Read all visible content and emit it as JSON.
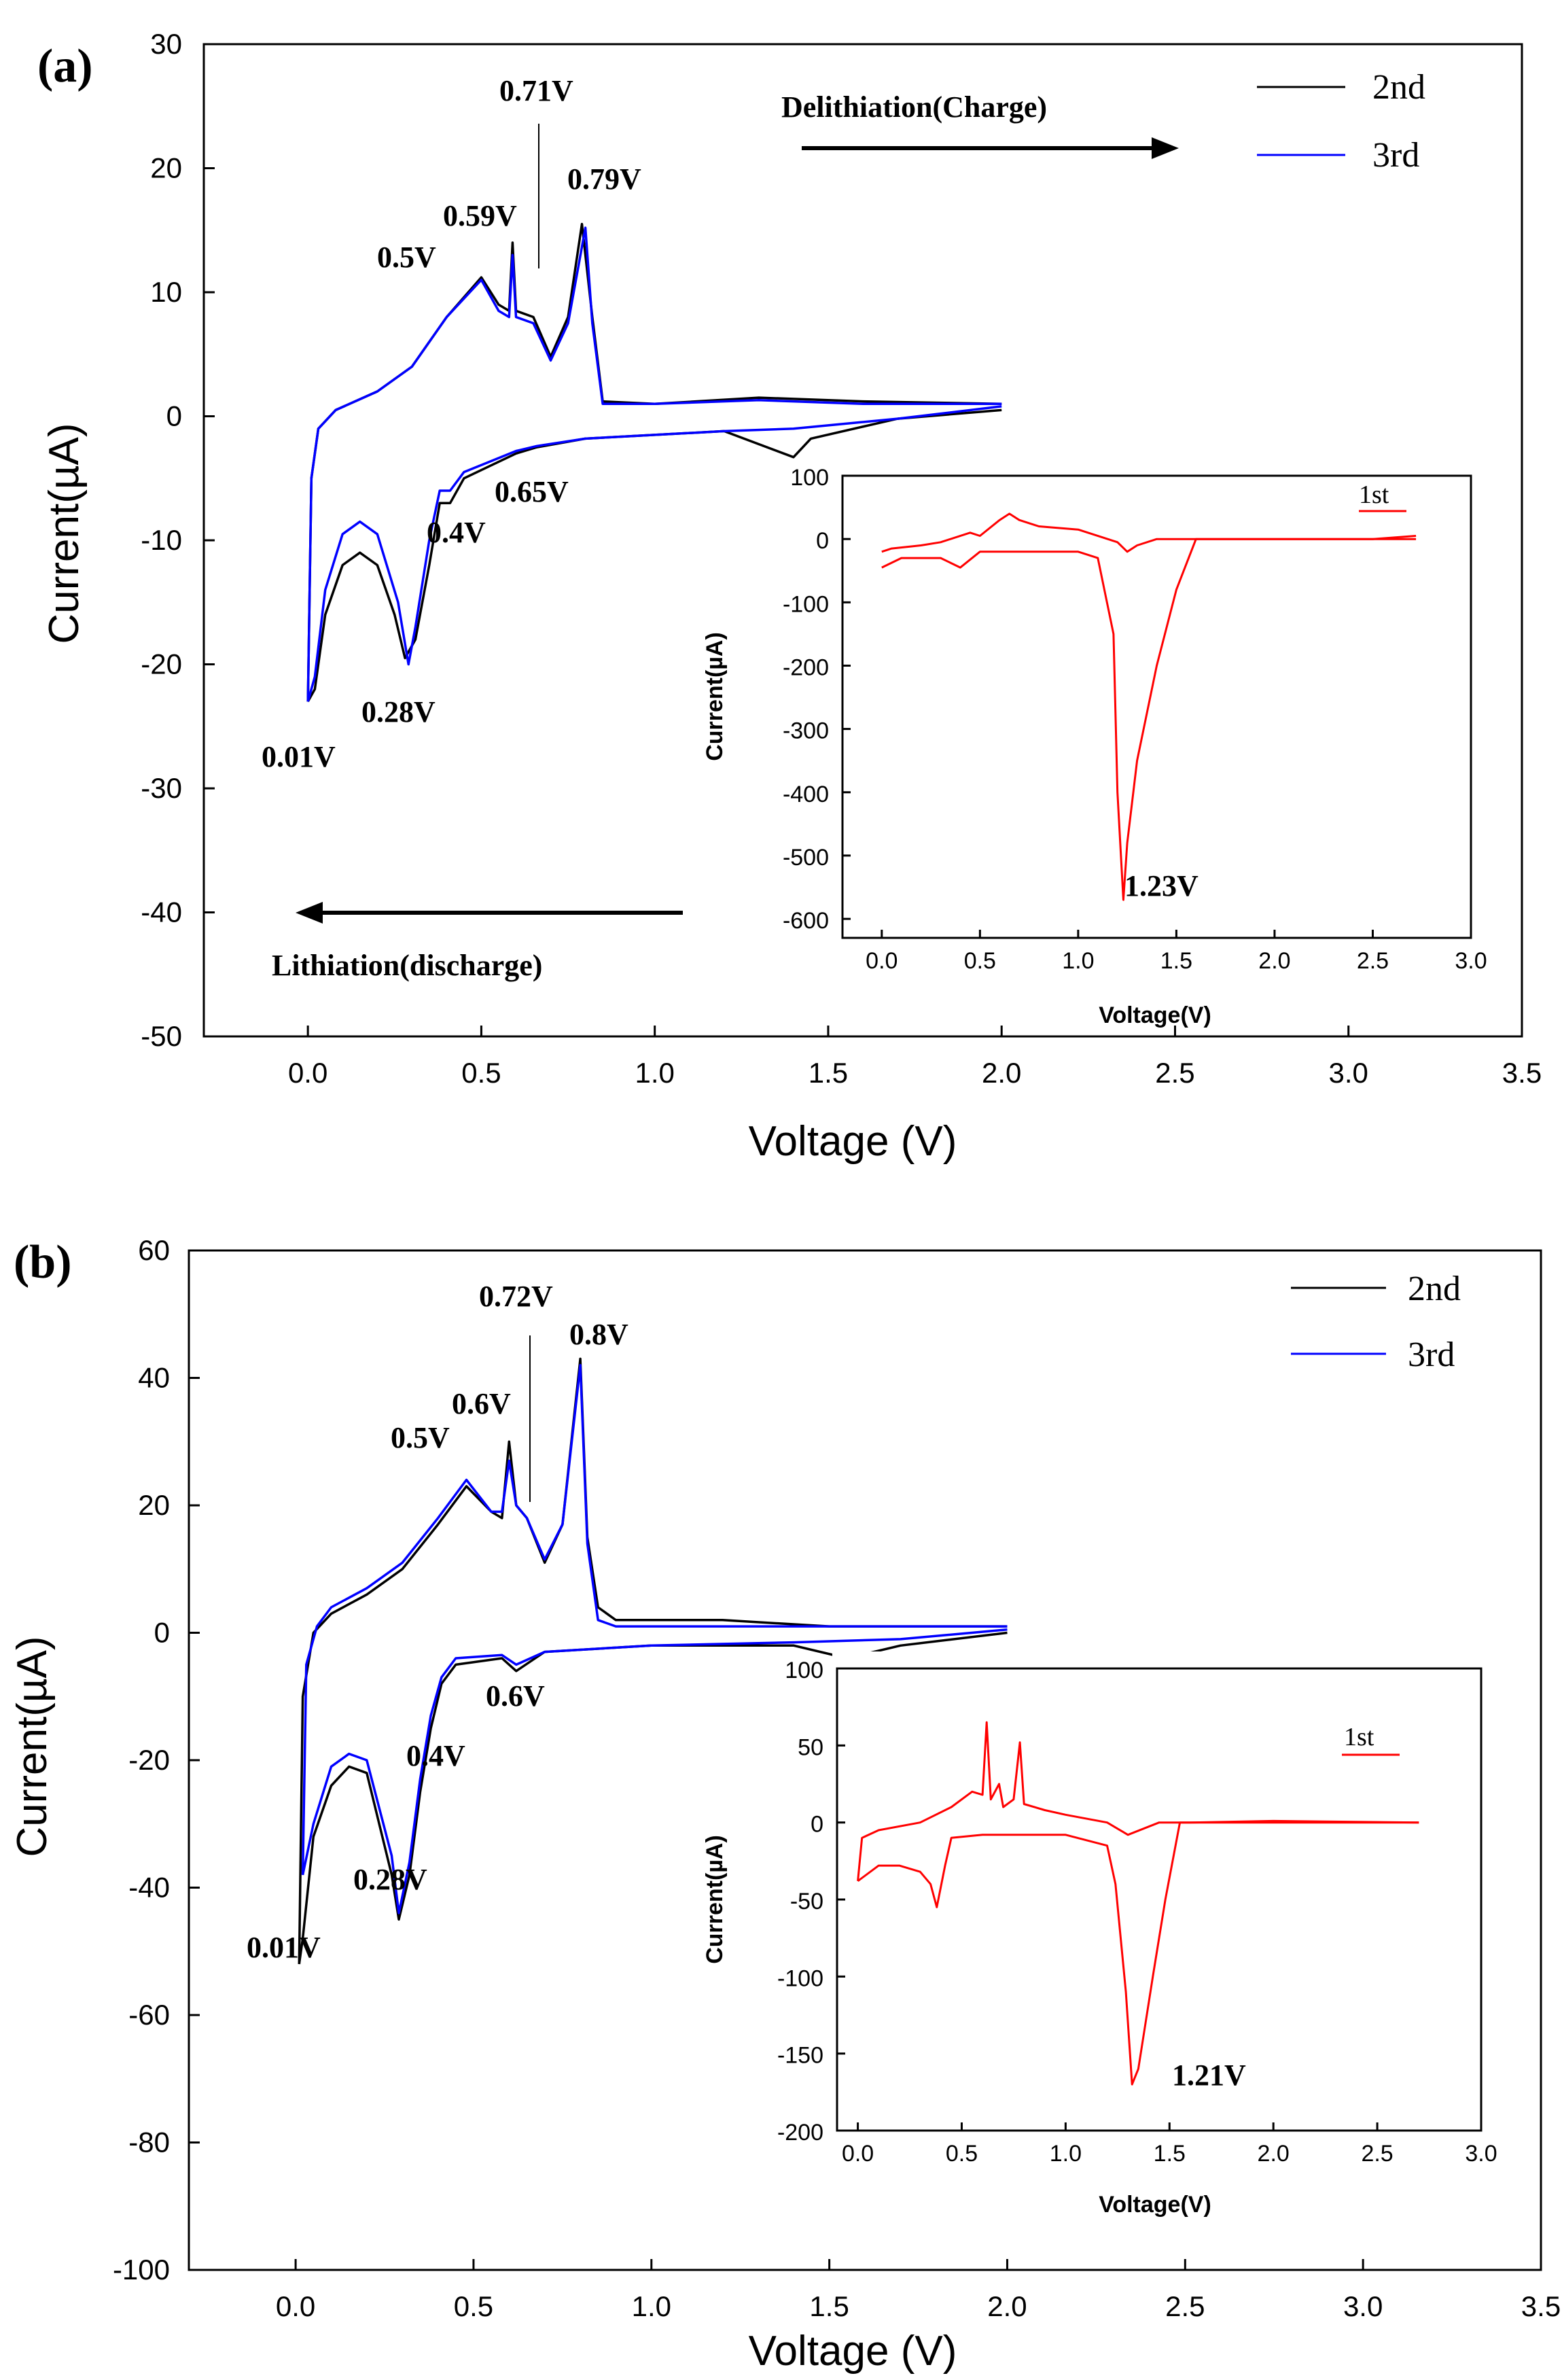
{
  "chart_data": [
    {
      "type": "line",
      "panel": "(a)",
      "xlabel": "Voltage (V)",
      "ylabel": "Current(µA)",
      "xlim": [
        -0.3,
        3.5
      ],
      "ylim": [
        -50,
        30
      ],
      "xticks": [
        "0.0",
        "0.5",
        "1.0",
        "1.5",
        "2.0",
        "2.5",
        "3.0",
        "3.5"
      ],
      "yticks": [
        "30",
        "20",
        "10",
        "0",
        "-10",
        "-20",
        "-30",
        "-40",
        "-50"
      ],
      "legend": [
        "2nd",
        "3rd"
      ],
      "colors": {
        "2nd": "#000000",
        "3rd": "#0000ff"
      },
      "series": [
        {
          "name": "2nd",
          "upper": [
            [
              0.0,
              -23
            ],
            [
              0.01,
              -5
            ],
            [
              0.03,
              -1
            ],
            [
              0.08,
              0.5
            ],
            [
              0.2,
              2
            ],
            [
              0.3,
              4
            ],
            [
              0.4,
              8
            ],
            [
              0.5,
              11.2
            ],
            [
              0.55,
              9
            ],
            [
              0.58,
              8.5
            ],
            [
              0.59,
              14
            ],
            [
              0.6,
              8.5
            ],
            [
              0.65,
              8
            ],
            [
              0.7,
              4.8
            ],
            [
              0.75,
              8
            ],
            [
              0.79,
              15.5
            ],
            [
              0.82,
              8
            ],
            [
              0.85,
              1.2
            ],
            [
              1.0,
              1.0
            ],
            [
              1.3,
              1.5
            ],
            [
              1.6,
              1.2
            ],
            [
              2.0,
              1.0
            ]
          ],
          "lower": [
            [
              2.0,
              0.5
            ],
            [
              1.7,
              -0.2
            ],
            [
              1.45,
              -1.8
            ],
            [
              1.4,
              -3.3
            ],
            [
              1.2,
              -1.2
            ],
            [
              0.8,
              -1.8
            ],
            [
              0.66,
              -2.5
            ],
            [
              0.6,
              -3
            ],
            [
              0.45,
              -5
            ],
            [
              0.41,
              -7
            ],
            [
              0.38,
              -7
            ],
            [
              0.35,
              -12
            ],
            [
              0.31,
              -18
            ],
            [
              0.28,
              -19.5
            ],
            [
              0.25,
              -16
            ],
            [
              0.2,
              -12
            ],
            [
              0.15,
              -11
            ],
            [
              0.1,
              -12
            ],
            [
              0.05,
              -16
            ],
            [
              0.02,
              -22
            ],
            [
              0.0,
              -23
            ]
          ]
        },
        {
          "name": "3rd",
          "upper": [
            [
              0.0,
              -23
            ],
            [
              0.01,
              -5
            ],
            [
              0.03,
              -1
            ],
            [
              0.08,
              0.5
            ],
            [
              0.2,
              2
            ],
            [
              0.3,
              4
            ],
            [
              0.4,
              8
            ],
            [
              0.5,
              11
            ],
            [
              0.55,
              8.5
            ],
            [
              0.58,
              8
            ],
            [
              0.59,
              13
            ],
            [
              0.6,
              8
            ],
            [
              0.65,
              7.5
            ],
            [
              0.7,
              4.5
            ],
            [
              0.75,
              7.5
            ],
            [
              0.8,
              15.2
            ],
            [
              0.82,
              7.5
            ],
            [
              0.85,
              1.0
            ],
            [
              1.0,
              1.0
            ],
            [
              1.3,
              1.3
            ],
            [
              1.6,
              1.0
            ],
            [
              2.0,
              1.0
            ]
          ],
          "lower": [
            [
              2.0,
              0.8
            ],
            [
              1.7,
              -0.2
            ],
            [
              1.4,
              -1.0
            ],
            [
              1.2,
              -1.2
            ],
            [
              0.8,
              -1.8
            ],
            [
              0.66,
              -2.4
            ],
            [
              0.6,
              -2.8
            ],
            [
              0.45,
              -4.5
            ],
            [
              0.41,
              -6
            ],
            [
              0.38,
              -6
            ],
            [
              0.35,
              -10
            ],
            [
              0.31,
              -17
            ],
            [
              0.29,
              -20
            ],
            [
              0.26,
              -15
            ],
            [
              0.2,
              -9.5
            ],
            [
              0.15,
              -8.5
            ],
            [
              0.1,
              -9.5
            ],
            [
              0.05,
              -14
            ],
            [
              0.02,
              -21
            ],
            [
              0.0,
              -23
            ]
          ]
        }
      ],
      "annotations": [
        "0.71V",
        "0.59V",
        "0.79V",
        "0.5V",
        "0.65V",
        "0.4V",
        "0.28V",
        "0.01V"
      ],
      "arrows": [
        {
          "label": "Delithiation(Charge)",
          "direction": "right"
        },
        {
          "label": "Lithiation(discharge)",
          "direction": "left"
        }
      ],
      "inset": {
        "xlabel": "Voltage(V)",
        "ylabel": "Current(µA)",
        "xlim": [
          -0.2,
          3.0
        ],
        "ylim": [
          -630,
          100
        ],
        "xticks": [
          "0.0",
          "0.5",
          "1.0",
          "1.5",
          "2.0",
          "2.5",
          "3.0"
        ],
        "yticks": [
          "100",
          "0",
          "-100",
          "-200",
          "-300",
          "-400",
          "-500",
          "-600"
        ],
        "legend": [
          "1st"
        ],
        "color": "#ff0000",
        "annotation": "1.23V",
        "upper": [
          [
            0.0,
            -20
          ],
          [
            0.05,
            -15
          ],
          [
            0.2,
            -10
          ],
          [
            0.3,
            -5
          ],
          [
            0.45,
            10
          ],
          [
            0.5,
            5
          ],
          [
            0.6,
            30
          ],
          [
            0.65,
            40
          ],
          [
            0.7,
            30
          ],
          [
            0.8,
            20
          ],
          [
            1.0,
            15
          ],
          [
            1.2,
            -5
          ],
          [
            1.25,
            -20
          ],
          [
            1.3,
            -10
          ],
          [
            1.4,
            0
          ],
          [
            1.7,
            0
          ],
          [
            2.0,
            0
          ],
          [
            2.72,
            0
          ]
        ],
        "lower": [
          [
            2.72,
            5
          ],
          [
            2.5,
            0
          ],
          [
            2.0,
            0
          ],
          [
            1.6,
            0
          ],
          [
            1.5,
            -80
          ],
          [
            1.4,
            -200
          ],
          [
            1.3,
            -350
          ],
          [
            1.25,
            -480
          ],
          [
            1.23,
            -570
          ],
          [
            1.2,
            -400
          ],
          [
            1.18,
            -150
          ],
          [
            1.1,
            -30
          ],
          [
            1.0,
            -20
          ],
          [
            0.5,
            -20
          ],
          [
            0.4,
            -45
          ],
          [
            0.3,
            -30
          ],
          [
            0.1,
            -30
          ],
          [
            0.0,
            -45
          ]
        ]
      }
    },
    {
      "type": "line",
      "panel": "(b)",
      "xlabel": "Voltage (V)",
      "ylabel": "Current(µA)",
      "xlim": [
        -0.3,
        3.5
      ],
      "ylim": [
        -100,
        60
      ],
      "xticks": [
        "0.0",
        "0.5",
        "1.0",
        "1.5",
        "2.0",
        "2.5",
        "3.0",
        "3.5"
      ],
      "yticks": [
        "60",
        "40",
        "20",
        "0",
        "-20",
        "-40",
        "-60",
        "-80",
        "-100"
      ],
      "legend": [
        "2nd",
        "3rd"
      ],
      "colors": {
        "2nd": "#000000",
        "3rd": "#0000ff"
      },
      "series": [
        {
          "name": "2nd",
          "upper": [
            [
              0.01,
              -52
            ],
            [
              0.02,
              -10
            ],
            [
              0.05,
              0
            ],
            [
              0.1,
              3
            ],
            [
              0.2,
              6
            ],
            [
              0.3,
              10
            ],
            [
              0.4,
              17
            ],
            [
              0.48,
              23
            ],
            [
              0.55,
              19
            ],
            [
              0.58,
              18
            ],
            [
              0.6,
              30
            ],
            [
              0.62,
              20
            ],
            [
              0.65,
              18
            ],
            [
              0.7,
              11
            ],
            [
              0.75,
              17
            ],
            [
              0.8,
              43
            ],
            [
              0.82,
              15
            ],
            [
              0.85,
              4
            ],
            [
              0.9,
              2
            ],
            [
              1.2,
              2
            ],
            [
              1.5,
              1
            ],
            [
              2.0,
              1
            ]
          ],
          "lower": [
            [
              2.0,
              0
            ],
            [
              1.7,
              -2
            ],
            [
              1.55,
              -4
            ],
            [
              1.4,
              -2
            ],
            [
              1.0,
              -2
            ],
            [
              0.7,
              -3
            ],
            [
              0.62,
              -6
            ],
            [
              0.58,
              -4
            ],
            [
              0.45,
              -5
            ],
            [
              0.41,
              -8
            ],
            [
              0.38,
              -15
            ],
            [
              0.35,
              -25
            ],
            [
              0.32,
              -38
            ],
            [
              0.29,
              -45
            ],
            [
              0.27,
              -38
            ],
            [
              0.2,
              -22
            ],
            [
              0.15,
              -21
            ],
            [
              0.1,
              -24
            ],
            [
              0.05,
              -32
            ],
            [
              0.02,
              -48
            ],
            [
              0.01,
              -52
            ]
          ]
        },
        {
          "name": "3rd",
          "upper": [
            [
              0.02,
              -38
            ],
            [
              0.03,
              -5
            ],
            [
              0.06,
              1
            ],
            [
              0.1,
              4
            ],
            [
              0.2,
              7
            ],
            [
              0.3,
              11
            ],
            [
              0.4,
              18
            ],
            [
              0.48,
              24
            ],
            [
              0.55,
              19
            ],
            [
              0.58,
              19
            ],
            [
              0.6,
              27
            ],
            [
              0.62,
              20
            ],
            [
              0.65,
              18
            ],
            [
              0.7,
              11.5
            ],
            [
              0.75,
              17
            ],
            [
              0.8,
              42
            ],
            [
              0.82,
              14
            ],
            [
              0.85,
              2
            ],
            [
              0.9,
              1
            ],
            [
              1.2,
              1
            ],
            [
              1.5,
              1
            ],
            [
              2.0,
              1
            ]
          ],
          "lower": [
            [
              2.0,
              0.5
            ],
            [
              1.7,
              -1
            ],
            [
              1.4,
              -1.5
            ],
            [
              1.0,
              -2
            ],
            [
              0.7,
              -3
            ],
            [
              0.62,
              -5
            ],
            [
              0.58,
              -3.5
            ],
            [
              0.45,
              -4
            ],
            [
              0.41,
              -7
            ],
            [
              0.38,
              -13
            ],
            [
              0.35,
              -23
            ],
            [
              0.32,
              -36
            ],
            [
              0.29,
              -44
            ],
            [
              0.27,
              -35
            ],
            [
              0.2,
              -20
            ],
            [
              0.15,
              -19
            ],
            [
              0.1,
              -21
            ],
            [
              0.05,
              -30
            ],
            [
              0.02,
              -38
            ]
          ]
        }
      ],
      "annotations": [
        "0.72V",
        "0.8V",
        "0.6V",
        "0.5V",
        "0.6V",
        "0.4V",
        "0.28V",
        "0.01V"
      ],
      "inset": {
        "xlabel": "Voltage(V)",
        "ylabel": "Current(µA)",
        "xlim": [
          -0.1,
          3.0
        ],
        "ylim": [
          -200,
          100
        ],
        "xticks": [
          "0.0",
          "0.5",
          "1.0",
          "1.5",
          "2.0",
          "2.5",
          "3.0"
        ],
        "yticks": [
          "100",
          "50",
          "0",
          "-50",
          "-100",
          "-150",
          "-200"
        ],
        "legend": [
          "1st"
        ],
        "color": "#ff0000",
        "annotation": "1.21V",
        "upper": [
          [
            0.0,
            -38
          ],
          [
            0.02,
            -10
          ],
          [
            0.1,
            -5
          ],
          [
            0.3,
            0
          ],
          [
            0.45,
            10
          ],
          [
            0.55,
            20
          ],
          [
            0.6,
            18
          ],
          [
            0.62,
            65
          ],
          [
            0.64,
            15
          ],
          [
            0.68,
            25
          ],
          [
            0.7,
            10
          ],
          [
            0.75,
            15
          ],
          [
            0.78,
            52
          ],
          [
            0.8,
            12
          ],
          [
            0.9,
            8
          ],
          [
            1.0,
            5
          ],
          [
            1.2,
            0
          ],
          [
            1.3,
            -8
          ],
          [
            1.45,
            0
          ],
          [
            1.6,
            0
          ],
          [
            2.0,
            1
          ],
          [
            2.7,
            0
          ]
        ],
        "lower": [
          [
            2.7,
            0
          ],
          [
            2.0,
            0
          ],
          [
            1.55,
            0
          ],
          [
            1.48,
            -50
          ],
          [
            1.42,
            -100
          ],
          [
            1.35,
            -160
          ],
          [
            1.32,
            -170
          ],
          [
            1.29,
            -110
          ],
          [
            1.24,
            -40
          ],
          [
            1.2,
            -15
          ],
          [
            1.0,
            -8
          ],
          [
            0.6,
            -8
          ],
          [
            0.45,
            -10
          ],
          [
            0.42,
            -28
          ],
          [
            0.38,
            -55
          ],
          [
            0.35,
            -40
          ],
          [
            0.3,
            -32
          ],
          [
            0.2,
            -28
          ],
          [
            0.1,
            -28
          ],
          [
            0.0,
            -38
          ]
        ]
      }
    }
  ]
}
